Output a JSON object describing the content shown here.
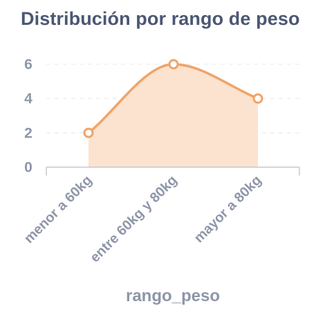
{
  "title": "Distribución por rango de peso",
  "chart_data": {
    "type": "area",
    "categories": [
      "menor a 60kg",
      "entre 60kg y 80kg",
      "mayor a 80kg"
    ],
    "series": [
      {
        "values": [
          2,
          6,
          4
        ]
      }
    ],
    "xlabel": "rango_peso",
    "ylabel": "",
    "ylim": [
      0,
      6
    ],
    "yticks": [
      0,
      2,
      4,
      6
    ],
    "grid": true,
    "colors": {
      "line": "#f0a468",
      "fill": "#fbe3d0",
      "marker_fill": "#ffffff",
      "grid": "#e6e8ec",
      "axis": "#c3c8d2",
      "text": "#8e96a8",
      "title": "#4c5773"
    }
  }
}
